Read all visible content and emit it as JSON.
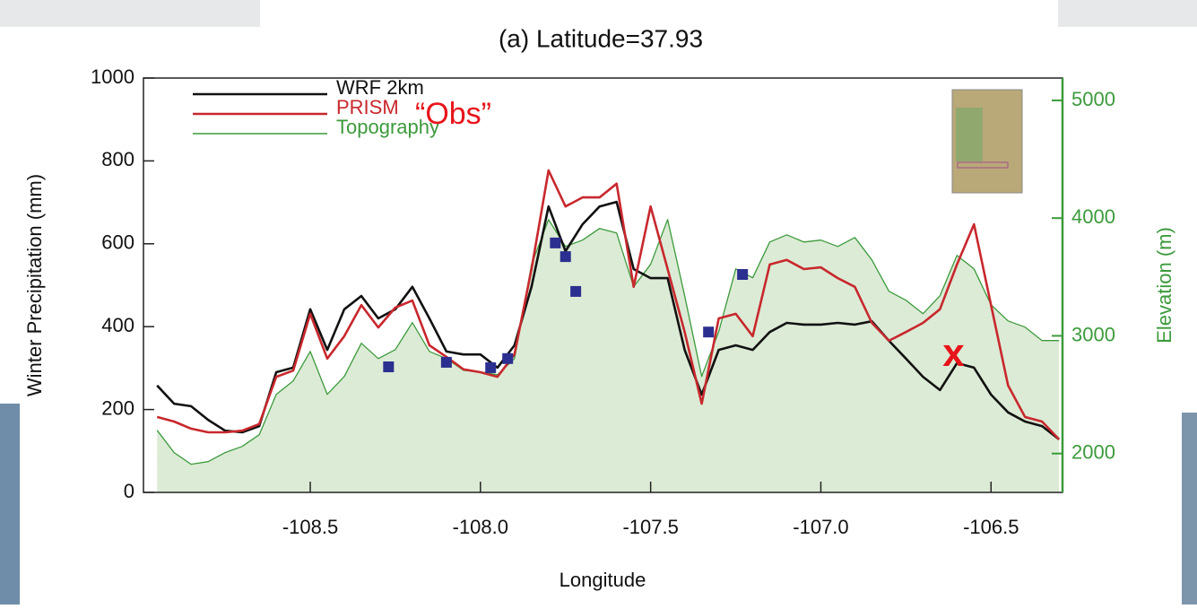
{
  "chart_data": {
    "type": "line",
    "title": "(a) Latitude=37.93",
    "xlabel": "Longitude",
    "ylabel": "Winter Precipitation (mm)",
    "y2label": "Elevation (m)",
    "x": [
      -108.95,
      -108.9,
      -108.85,
      -108.8,
      -108.75,
      -108.7,
      -108.65,
      -108.6,
      -108.55,
      -108.5,
      -108.45,
      -108.4,
      -108.35,
      -108.3,
      -108.25,
      -108.2,
      -108.15,
      -108.1,
      -108.05,
      -108.0,
      -107.95,
      -107.9,
      -107.85,
      -107.8,
      -107.75,
      -107.7,
      -107.65,
      -107.6,
      -107.55,
      -107.5,
      -107.45,
      -107.4,
      -107.35,
      -107.3,
      -107.25,
      -107.2,
      -107.15,
      -107.1,
      -107.05,
      -107.0,
      -106.95,
      -106.9,
      -106.85,
      -106.8,
      -106.75,
      -106.7,
      -106.65,
      -106.6,
      -106.55,
      -106.5,
      -106.45,
      -106.4,
      -106.35,
      -106.3
    ],
    "series": [
      {
        "name": "WRF 2km",
        "color": "#111111",
        "values": [
          258,
          214,
          208,
          175,
          149,
          145,
          160,
          290,
          301,
          442,
          344,
          442,
          474,
          420,
          442,
          496,
          420,
          340,
          333,
          333,
          301,
          355,
          496,
          690,
          582,
          647,
          690,
          701,
          539,
          517,
          517,
          344,
          236,
          344,
          355,
          344,
          387,
          409,
          405,
          405,
          409,
          405,
          413,
          366,
          323,
          279,
          247,
          312,
          301,
          236,
          193,
          171,
          160,
          128
        ]
      },
      {
        "name": "PRISM",
        "color": "#c8282d",
        "values": [
          182,
          171,
          154,
          145,
          145,
          149,
          165,
          279,
          294,
          431,
          323,
          377,
          452,
          398,
          446,
          463,
          355,
          327,
          297,
          290,
          279,
          333,
          539,
          777,
          690,
          712,
          712,
          745,
          496,
          690,
          539,
          387,
          214,
          420,
          431,
          377,
          550,
          561,
          539,
          543,
          517,
          496,
          409,
          366,
          387,
          409,
          442,
          550,
          647,
          452,
          258,
          182,
          171,
          128
        ]
      },
      {
        "name": "Topography",
        "color": "#3c9a3c",
        "fill": "#dcebd6",
        "axis": "y2",
        "values": [
          2198,
          2008,
          1909,
          1931,
          2008,
          2061,
          2160,
          2503,
          2617,
          2868,
          2503,
          2655,
          2937,
          2807,
          2883,
          3112,
          2868,
          2807,
          2708,
          2693,
          2670,
          2807,
          3607,
          3988,
          3759,
          3813,
          3912,
          3874,
          3417,
          3607,
          3988,
          3340,
          2655,
          3036,
          3569,
          3493,
          3797,
          3858,
          3797,
          3813,
          3759,
          3835,
          3645,
          3379,
          3302,
          3188,
          3340,
          3683,
          3569,
          3264,
          3127,
          3074,
          2960,
          2960
        ]
      },
      {
        "type": "scatter",
        "color": "#2b2f8f",
        "x": [
          -108.27,
          -108.1,
          -107.97,
          -107.92,
          -107.78,
          -107.75,
          -107.72,
          -107.33,
          -107.23
        ],
        "values": [
          303,
          314,
          301,
          323,
          602,
          569,
          485,
          387,
          526
        ]
      }
    ],
    "xlim": [
      -108.99,
      -106.29
    ],
    "xticks": [
      -108.5,
      {
        "value": -108,
        "label": "-108.0"
      },
      -107.5,
      {
        "value": -107,
        "label": "-107.0"
      },
      -106.5
    ],
    "ylim": [
      0,
      1000
    ],
    "yticks": [
      0,
      200,
      400,
      600,
      800,
      1000
    ],
    "y2lim": [
      1670,
      5190
    ],
    "y2ticks": [
      2000,
      3000,
      4000,
      5000
    ],
    "y2color": "#3c9a3c",
    "legend": "upper left",
    "annotations": [
      {
        "text": "“Obs”",
        "color": "#e8141b"
      }
    ],
    "marker": {
      "label": "x",
      "x": -106.61,
      "y": 330,
      "color": "#e8141b"
    }
  }
}
